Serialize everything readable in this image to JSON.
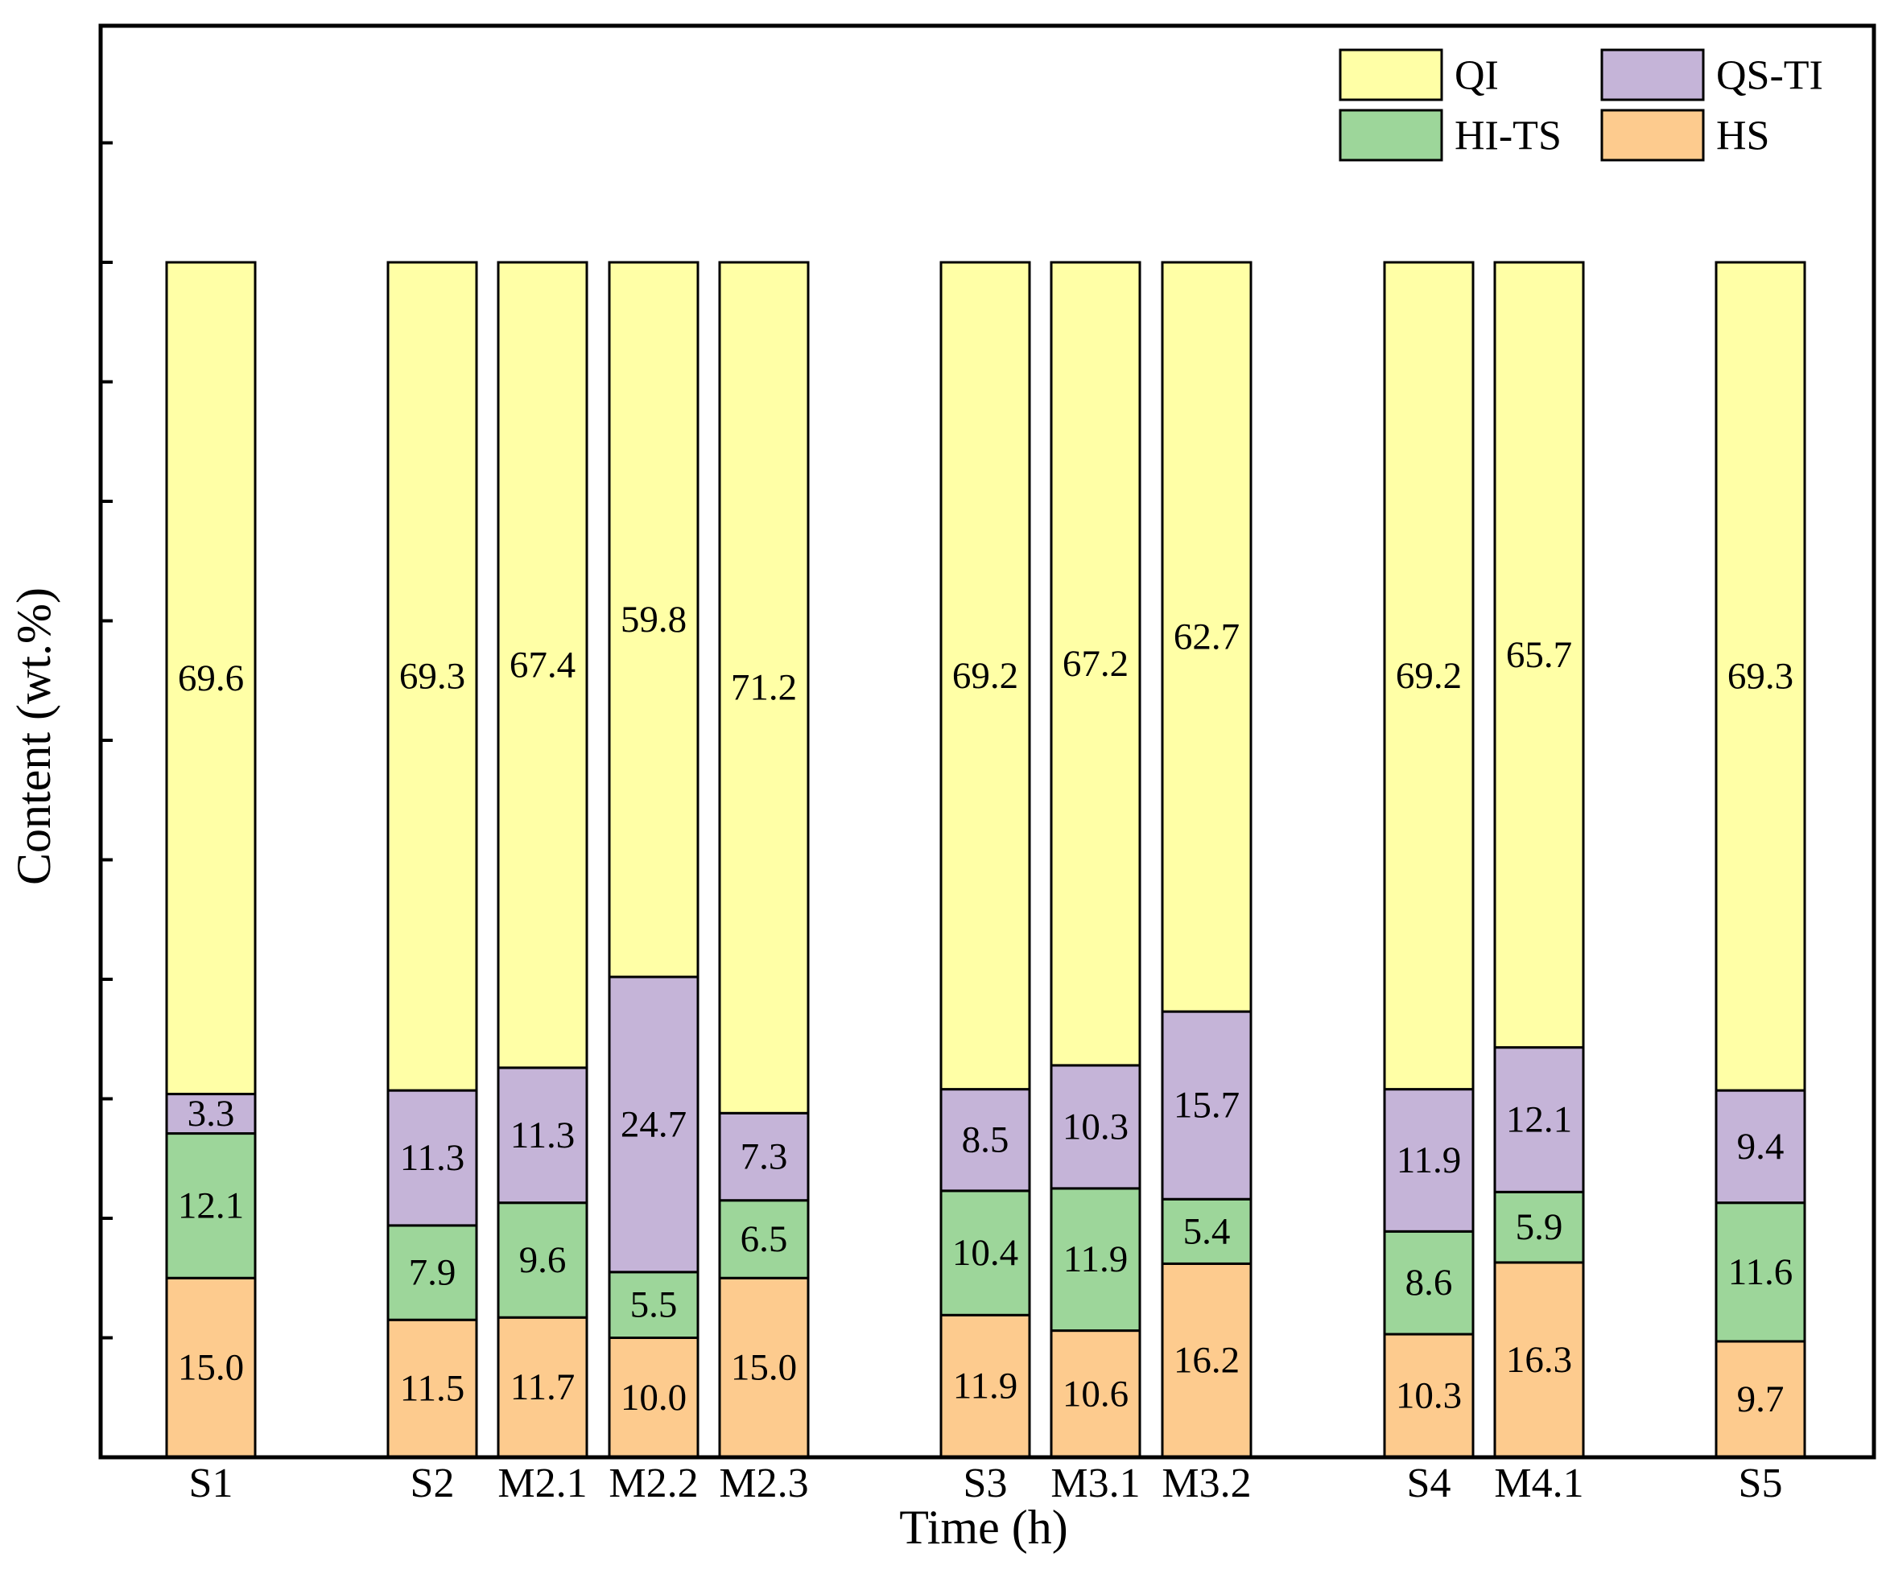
{
  "chart_data": {
    "type": "bar",
    "stacked": true,
    "xlabel": "Time (h)",
    "ylabel": "Content (wt.%)",
    "ylim": [
      0,
      100
    ],
    "y_tick_labels_shown": false,
    "categories": [
      "S1",
      "S2",
      "M2.1",
      "M2.2",
      "M2.3",
      "S3",
      "M3.1",
      "M3.2",
      "S4",
      "M4.1",
      "S5"
    ],
    "series": [
      {
        "name": "HS",
        "color": "#FDCB8E",
        "values": [
          15.0,
          11.5,
          11.7,
          10.0,
          15.0,
          11.9,
          10.6,
          16.2,
          10.3,
          16.3,
          9.7
        ],
        "labels": [
          "15.0",
          "11.5",
          "11.7",
          "10.0",
          "15.0",
          "11.9",
          "10.6",
          "16.2",
          "10.3",
          "16.3",
          "9.7"
        ]
      },
      {
        "name": "HI-TS",
        "color": "#9DD69A",
        "values": [
          12.1,
          7.9,
          9.6,
          5.5,
          6.5,
          10.4,
          11.9,
          5.4,
          8.6,
          5.9,
          11.6
        ],
        "labels": [
          "12.1",
          "7.9",
          "9.6",
          "5.5",
          "6.5",
          "10.4",
          "11.9",
          "5.4",
          "8.6",
          "5.9",
          "11.6"
        ]
      },
      {
        "name": "QS-TI",
        "color": "#C5B4D8",
        "values": [
          3.3,
          11.3,
          11.3,
          24.7,
          7.3,
          8.5,
          10.3,
          15.7,
          11.9,
          12.1,
          9.4
        ],
        "labels": [
          "3.3",
          "11.3",
          "11.3",
          "24.7",
          "7.3",
          "8.5",
          "10.3",
          "15.7",
          "11.9",
          "12.1",
          "9.4"
        ]
      },
      {
        "name": "QI",
        "color": "#FFFFA6",
        "values": [
          69.6,
          69.3,
          67.4,
          59.8,
          71.2,
          69.2,
          67.2,
          62.7,
          69.2,
          65.7,
          69.3
        ],
        "labels": [
          "69.6",
          "69.3",
          "67.4",
          "59.8",
          "71.2",
          "69.2",
          "67.2",
          "62.7",
          "69.2",
          "65.7",
          "69.3"
        ]
      }
    ],
    "legend": {
      "placement": "top-right",
      "order": [
        "QI",
        "QS-TI",
        "HI-TS",
        "HS"
      ]
    },
    "grid": false
  }
}
